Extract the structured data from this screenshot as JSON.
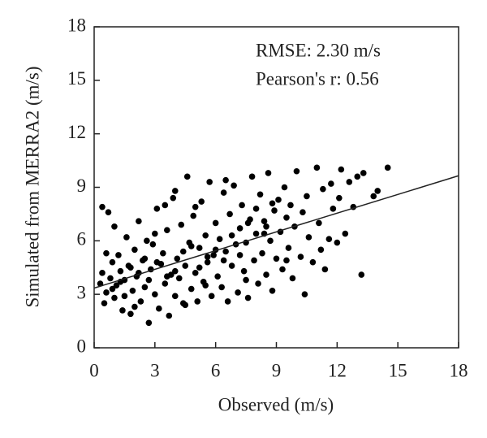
{
  "chart_data": {
    "type": "scatter",
    "xlabel": "Observed (m/s)",
    "ylabel": "Simulated from MERRA2 (m/s)",
    "annotations": [
      "RMSE: 2.30 m/s",
      "Pearson's r: 0.56"
    ],
    "color": "#000000",
    "xlim": [
      0,
      18
    ],
    "ylim": [
      0,
      18
    ],
    "xticks": [
      0,
      3,
      6,
      9,
      12,
      15,
      18
    ],
    "yticks": [
      0,
      3,
      6,
      9,
      12,
      15,
      18
    ],
    "x": [
      0.3,
      0.4,
      0.5,
      0.6,
      0.4,
      0.7,
      0.8,
      0.9,
      1.0,
      1.1,
      1.2,
      1.3,
      1.4,
      1.5,
      1.6,
      1.7,
      1.8,
      1.9,
      2.0,
      2.1,
      2.2,
      2.3,
      2.4,
      2.5,
      2.6,
      2.7,
      2.8,
      2.9,
      3.0,
      3.1,
      3.2,
      3.3,
      3.4,
      3.5,
      3.6,
      3.7,
      3.8,
      3.9,
      4.0,
      4.1,
      4.2,
      4.3,
      4.4,
      4.5,
      4.6,
      4.7,
      4.8,
      4.9,
      5.0,
      5.1,
      5.2,
      5.3,
      5.4,
      5.5,
      5.6,
      5.7,
      5.8,
      5.9,
      6.0,
      6.1,
      6.2,
      6.3,
      6.4,
      6.5,
      6.6,
      6.7,
      6.8,
      6.9,
      7.0,
      7.1,
      7.2,
      7.3,
      7.4,
      7.5,
      7.6,
      7.7,
      7.8,
      7.9,
      8.0,
      8.1,
      8.2,
      8.3,
      8.4,
      8.5,
      8.6,
      8.7,
      8.8,
      8.9,
      9.0,
      9.1,
      9.2,
      9.3,
      9.4,
      9.5,
      9.6,
      9.7,
      9.8,
      9.9,
      10.0,
      10.2,
      10.3,
      10.4,
      10.5,
      10.6,
      10.8,
      11.0,
      11.1,
      11.2,
      11.3,
      11.4,
      11.6,
      11.7,
      11.8,
      12.0,
      12.1,
      12.2,
      12.4,
      12.6,
      12.8,
      13.0,
      13.2,
      13.3,
      13.8,
      14.0,
      14.5,
      1.0,
      2.0,
      3.0,
      4.0,
      5.0,
      0.6,
      1.5,
      2.5,
      3.5,
      4.5,
      5.5,
      6.5,
      7.5,
      8.5,
      9.5,
      0.9,
      1.8,
      2.7,
      3.6,
      4.4,
      5.2,
      6.0,
      6.8,
      7.6,
      8.4,
      1.3,
      2.2,
      3.1,
      4.0,
      4.8,
      5.6,
      6.4,
      7.2,
      8.0,
      8.8
    ],
    "y": [
      3.6,
      4.2,
      2.5,
      3.1,
      7.9,
      7.6,
      3.9,
      4.8,
      2.8,
      3.5,
      5.2,
      4.3,
      2.1,
      3.8,
      6.2,
      4.6,
      1.9,
      3.2,
      5.5,
      4.0,
      7.1,
      2.6,
      4.9,
      3.4,
      6.0,
      1.4,
      4.4,
      5.8,
      3.0,
      7.8,
      2.2,
      4.7,
      5.3,
      3.6,
      6.6,
      1.8,
      4.1,
      8.4,
      2.9,
      5.0,
      3.9,
      6.9,
      2.5,
      4.6,
      9.6,
      5.9,
      3.3,
      7.4,
      4.2,
      2.6,
      5.6,
      8.2,
      3.7,
      6.3,
      4.8,
      9.3,
      2.9,
      5.2,
      7.0,
      4.0,
      6.1,
      3.4,
      8.7,
      5.4,
      2.6,
      7.5,
      4.6,
      9.1,
      5.8,
      3.1,
      6.7,
      8.0,
      4.3,
      5.9,
      2.8,
      7.2,
      9.6,
      4.9,
      6.4,
      3.6,
      8.6,
      5.3,
      7.1,
      4.1,
      9.8,
      6.0,
      3.2,
      7.7,
      5.0,
      8.3,
      6.5,
      4.4,
      9.0,
      7.3,
      5.6,
      8.0,
      3.9,
      6.8,
      9.9,
      5.1,
      7.6,
      3.0,
      8.5,
      6.2,
      4.8,
      10.1,
      7.0,
      5.5,
      8.9,
      4.4,
      6.1,
      9.2,
      7.8,
      5.9,
      8.4,
      10.0,
      6.4,
      9.3,
      7.9,
      9.6,
      4.1,
      9.8,
      8.5,
      8.8,
      10.1,
      6.8,
      2.3,
      6.4,
      8.8,
      7.9,
      5.3,
      2.9,
      5.0,
      8.0,
      2.4,
      3.5,
      9.4,
      3.8,
      6.8,
      4.9,
      3.3,
      4.5,
      3.8,
      4.0,
      5.4,
      4.5,
      5.5,
      6.3,
      7.0,
      6.4,
      3.7,
      4.2,
      4.8,
      4.3,
      5.7,
      5.1,
      4.9,
      5.2,
      7.8,
      8.1
    ],
    "fit_line": {
      "x": [
        0,
        18
      ],
      "y": [
        3.35,
        9.65
      ]
    }
  }
}
